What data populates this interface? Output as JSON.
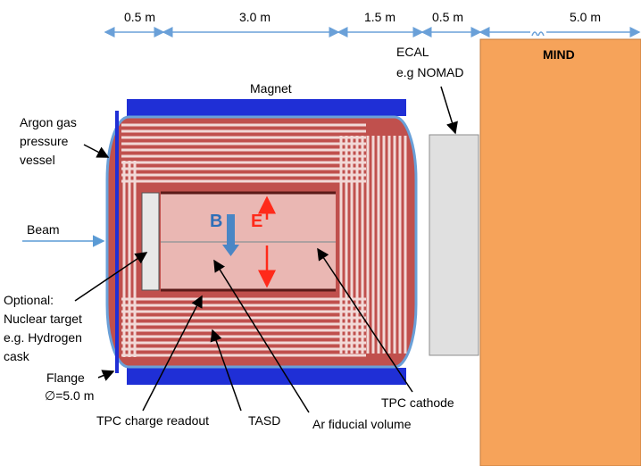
{
  "dimensions": [
    "0.5 m",
    "3.0 m",
    "1.5 m",
    "0.5 m",
    "5.0 m"
  ],
  "labels": {
    "magnet": "Magnet",
    "ecal": [
      "ECAL",
      "e.g NOMAD"
    ],
    "mind": "MIND",
    "argon": [
      "Argon gas",
      "pressure",
      "vessel"
    ],
    "beam": "Beam",
    "optional": [
      "Optional:",
      "Nuclear target",
      "e.g. Hydrogen",
      "cask"
    ],
    "flange": [
      "Flange",
      "∅=5.0 m"
    ],
    "tpc_readout": "TPC charge readout",
    "tasd": "TASD",
    "ar_fiducial": "Ar fiducial volume",
    "tpc_cathode": "TPC cathode",
    "b_field": "B",
    "e_field": "E"
  },
  "colors": {
    "magnet": "#1f2fd6",
    "mind": "#f6a35a",
    "ecal": "#e0e0e0",
    "vessel_outline": "#6aa0d8",
    "tasd_stripe": "#c0504d",
    "tpc_fill": "#eab7b3",
    "arrow_blue": "#4a86c5",
    "e_red": "#ff2a1a",
    "b_blue": "#2f6fb8"
  }
}
